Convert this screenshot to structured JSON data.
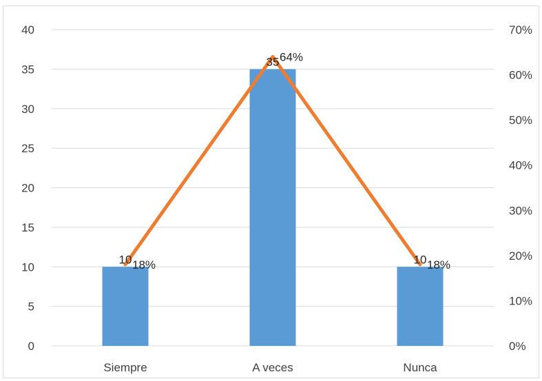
{
  "chart_data": {
    "type": "bar",
    "categories": [
      "Siempre",
      "A veces",
      "Nunca"
    ],
    "series": [
      {
        "type": "bar",
        "axis": "left",
        "values": [
          10,
          35,
          10
        ],
        "color": "#5b9bd5",
        "data_labels": [
          "10",
          "35",
          "10"
        ]
      },
      {
        "type": "line",
        "axis": "right",
        "values": [
          18,
          64,
          18
        ],
        "color": "#ed7d31",
        "data_labels": [
          "18%",
          "64%",
          "18%"
        ]
      }
    ],
    "y_left": {
      "min": 0,
      "max": 40,
      "ticks": [
        "0",
        "5",
        "10",
        "15",
        "20",
        "25",
        "30",
        "35",
        "40"
      ]
    },
    "y_right": {
      "min": 0,
      "max": 70,
      "ticks": [
        "0%",
        "10%",
        "20%",
        "30%",
        "40%",
        "50%",
        "60%",
        "70%"
      ]
    },
    "grid": true,
    "legend": "none",
    "gridline_color": "#d9d9d9"
  }
}
